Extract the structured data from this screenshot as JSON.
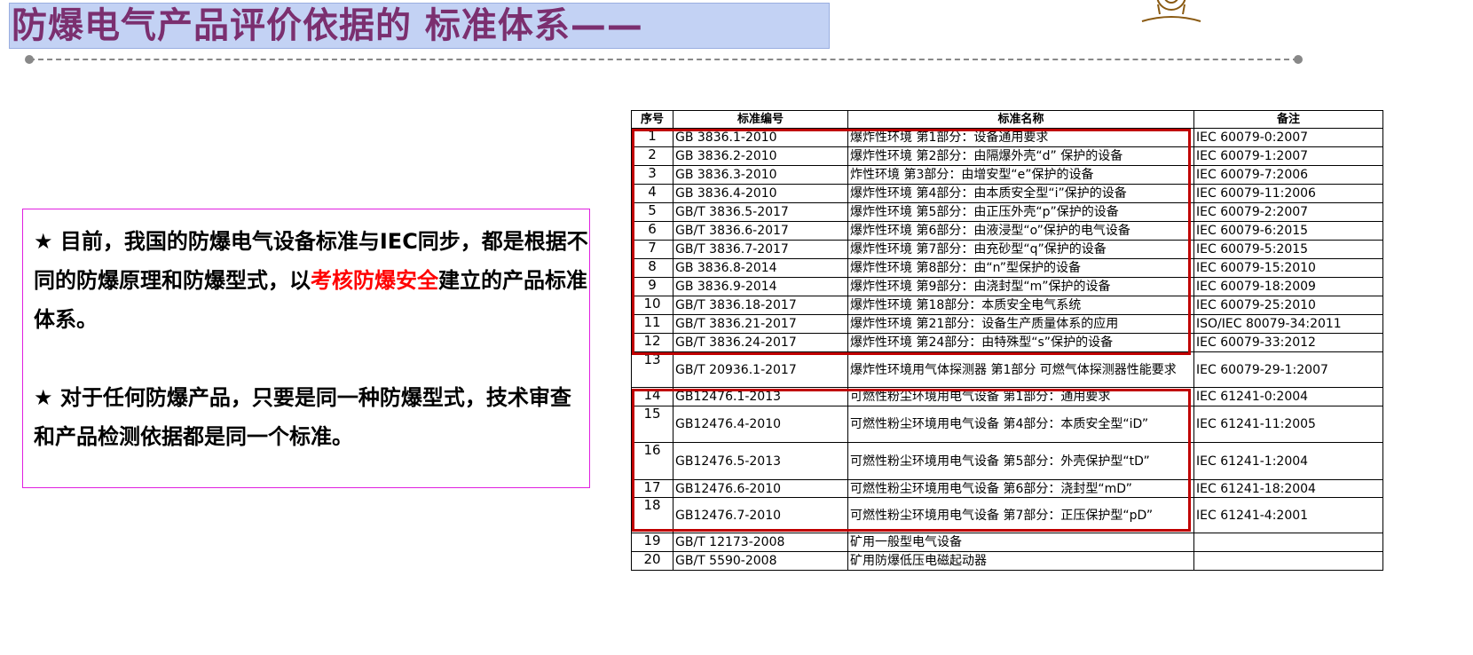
{
  "title": "防爆电气产品评价依据的 标准体系——",
  "colors": {
    "title_text": "#7b2f6f",
    "title_bg": "#c3d2f4",
    "highlight": "#ff0000",
    "box_border": "#c00000",
    "note_border": "#e020e0"
  },
  "note": {
    "p1_a": "★ 目前，我国的防爆电气设备标准与IEC同步，都是根据不同的防爆原理和防爆型式，以",
    "p1_red": "考核防爆安全",
    "p1_b": "建立的产品标准体系。",
    "p2": "★ 对于任何防爆产品，只要是同一种防爆型式，技术审查和产品检测依据都是同一个标准。"
  },
  "table": {
    "headers": [
      "序号",
      "标准编号",
      "标准名称",
      "备注"
    ],
    "rows": [
      [
        "1",
        "GB 3836.1-2010",
        "爆炸性环境 第1部分：设备通用要求",
        "IEC 60079-0:2007"
      ],
      [
        "2",
        "GB 3836.2-2010",
        "爆炸性环境 第2部分：由隔爆外壳“d” 保护的设备",
        "IEC 60079-1:2007"
      ],
      [
        "3",
        "GB 3836.3-2010",
        "炸性环境 第3部分：由增安型“e”保护的设备",
        "IEC 60079-7:2006"
      ],
      [
        "4",
        "GB 3836.4-2010",
        "爆炸性环境 第4部分：由本质安全型“i”保护的设备",
        "IEC 60079-11:2006"
      ],
      [
        "5",
        "GB/T 3836.5-2017",
        "爆炸性环境 第5部分：由正压外壳“p”保护的设备",
        "IEC 60079-2:2007"
      ],
      [
        "6",
        "GB/T 3836.6-2017",
        "爆炸性环境 第6部分：由液浸型“o”保护的电气设备",
        "IEC 60079-6:2015"
      ],
      [
        "7",
        "GB/T 3836.7-2017",
        "爆炸性环境 第7部分：由充砂型“q”保护的设备",
        "IEC 60079-5:2015"
      ],
      [
        "8",
        "GB 3836.8-2014",
        "爆炸性环境 第8部分：由“n”型保护的设备",
        "IEC 60079-15:2010"
      ],
      [
        "9",
        "GB 3836.9-2014",
        "爆炸性环境 第9部分：由浇封型“m”保护的设备",
        "IEC 60079-18:2009"
      ],
      [
        "10",
        "GB/T 3836.18-2017",
        "爆炸性环境 第18部分：本质安全电气系统",
        "IEC 60079-25:2010"
      ],
      [
        "11",
        "GB/T 3836.21-2017",
        "爆炸性环境 第21部分：设备生产质量体系的应用",
        "ISO/IEC 80079-34:2011"
      ],
      [
        "12",
        "GB/T 3836.24-2017",
        "爆炸性环境 第24部分：由特殊型“s”保护的设备",
        "IEC 60079-33:2012"
      ],
      [
        "13",
        "GB/T 20936.1-2017",
        "爆炸性环境用气体探测器 第1部分 可燃气体探测器性能要求",
        "IEC 60079-29-1:2007"
      ],
      [
        "14",
        "GB12476.1-2013",
        "可燃性粉尘环境用电气设备 第1部分：通用要求",
        "IEC 61241-0:2004"
      ],
      [
        "15",
        "GB12476.4-2010",
        "可燃性粉尘环境用电气设备 第4部分：本质安全型“iD”",
        "IEC 61241-11:2005"
      ],
      [
        "16",
        "GB12476.5-2013",
        "可燃性粉尘环境用电气设备 第5部分：外壳保护型“tD”",
        "IEC 61241-1:2004"
      ],
      [
        "17",
        "GB12476.6-2010",
        "可燃性粉尘环境用电气设备 第6部分：浇封型“mD”",
        "IEC 61241-18:2004"
      ],
      [
        "18",
        "GB12476.7-2010",
        "可燃性粉尘环境用电气设备 第7部分：正压保护型“pD”",
        "IEC 61241-4:2001"
      ],
      [
        "19",
        "GB/T 12173-2008",
        "矿用一般型电气设备",
        ""
      ],
      [
        "20",
        "GB/T 5590-2008",
        "矿用防爆低压电磁起动器",
        ""
      ]
    ]
  }
}
